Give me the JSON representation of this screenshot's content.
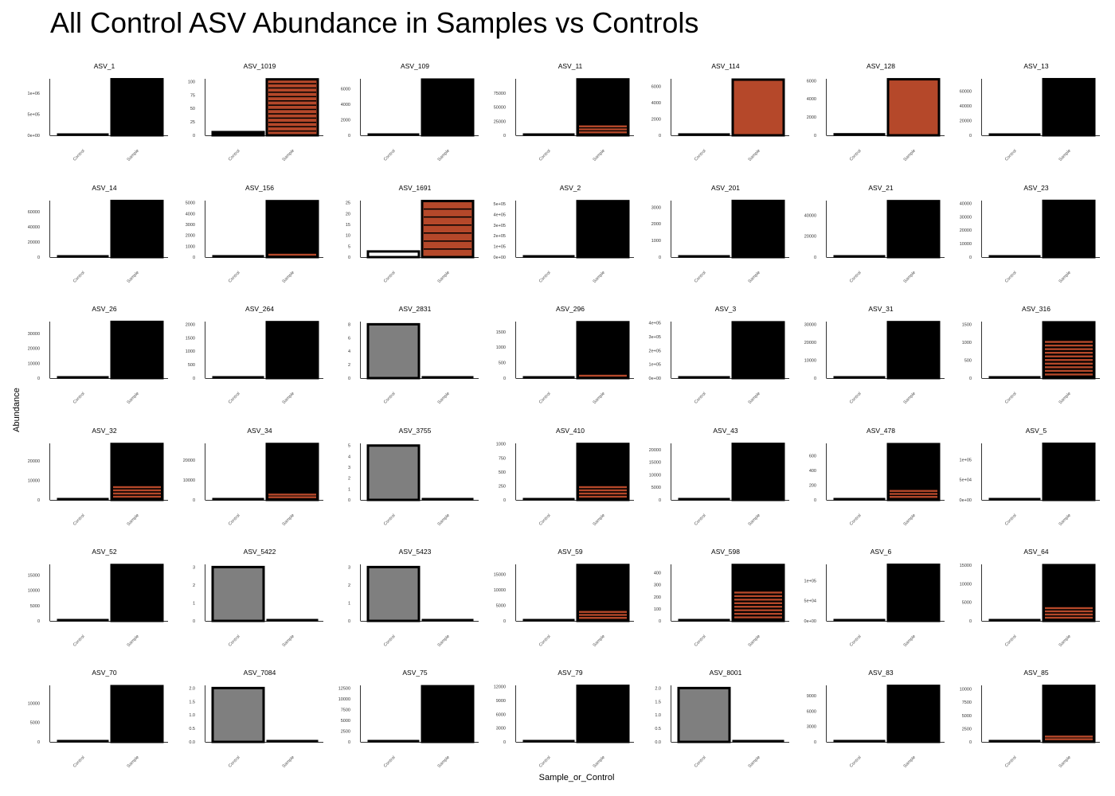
{
  "chart_data": {
    "type": "bar",
    "title": "All Control ASV Abundance in Samples vs Controls",
    "xlabel": "Sample_or_Control",
    "ylabel": "Abundance",
    "categories": [
      "Control",
      "Sample"
    ],
    "colors": {
      "black": "#000000",
      "rust": "#b5482a",
      "grey": "#7f7f7f"
    },
    "panels": [
      {
        "name": "ASV_1",
        "ymax": 1340000,
        "ticks": [
          [
            0,
            "0e+00"
          ],
          [
            500000,
            "5e+05"
          ],
          [
            1000000,
            "1e+06"
          ]
        ],
        "control": 30000,
        "sample": 1330000,
        "fill": "black"
      },
      {
        "name": "ASV_1019",
        "ymax": 105,
        "ticks": [
          [
            0,
            "0"
          ],
          [
            25,
            "25"
          ],
          [
            50,
            "50"
          ],
          [
            75,
            "75"
          ],
          [
            100,
            "100"
          ]
        ],
        "control": 6,
        "sample": 104,
        "fill": "rust",
        "stripes": 12
      },
      {
        "name": "ASV_109",
        "ymax": 7300,
        "ticks": [
          [
            0,
            "0"
          ],
          [
            2000,
            "2000"
          ],
          [
            4000,
            "4000"
          ],
          [
            6000,
            "6000"
          ]
        ],
        "control": 200,
        "sample": 7200,
        "fill": "black"
      },
      {
        "name": "ASV_11",
        "ymax": 100500,
        "ticks": [
          [
            0,
            "0"
          ],
          [
            25000,
            "25000"
          ],
          [
            50000,
            "50000"
          ],
          [
            75000,
            "75000"
          ]
        ],
        "control": 1500,
        "sample": 99500,
        "fill": "black",
        "stripes": 3
      },
      {
        "name": "ASV_114",
        "ymax": 6900,
        "ticks": [
          [
            0,
            "0"
          ],
          [
            2000,
            "2000"
          ],
          [
            4000,
            "4000"
          ],
          [
            6000,
            "6000"
          ]
        ],
        "control": 200,
        "sample": 6800,
        "fill": "rust"
      },
      {
        "name": "ASV_128",
        "ymax": 6200,
        "ticks": [
          [
            0,
            "0"
          ],
          [
            2000,
            "2000"
          ],
          [
            4000,
            "4000"
          ],
          [
            6000,
            "6000"
          ]
        ],
        "control": 200,
        "sample": 6150,
        "fill": "rust"
      },
      {
        "name": "ASV_13",
        "ymax": 77000,
        "ticks": [
          [
            0,
            "0"
          ],
          [
            20000,
            "20000"
          ],
          [
            40000,
            "40000"
          ],
          [
            60000,
            "60000"
          ]
        ],
        "control": 1500,
        "sample": 76500,
        "fill": "black"
      },
      {
        "name": "ASV_14",
        "ymax": 75000,
        "ticks": [
          [
            0,
            "0"
          ],
          [
            20000,
            "20000"
          ],
          [
            40000,
            "40000"
          ],
          [
            60000,
            "60000"
          ]
        ],
        "control": 1500,
        "sample": 74500,
        "fill": "black"
      },
      {
        "name": "ASV_156",
        "ymax": 5200,
        "ticks": [
          [
            0,
            "0"
          ],
          [
            1000,
            "1000"
          ],
          [
            2000,
            "2000"
          ],
          [
            3000,
            "3000"
          ],
          [
            4000,
            "4000"
          ],
          [
            5000,
            "5000"
          ]
        ],
        "control": 150,
        "sample": 5150,
        "fill": "black",
        "stripes": 1
      },
      {
        "name": "ASV_1691",
        "ymax": 26,
        "ticks": [
          [
            0,
            "0"
          ],
          [
            5,
            "5"
          ],
          [
            10,
            "10"
          ],
          [
            15,
            "15"
          ],
          [
            20,
            "20"
          ],
          [
            25,
            "25"
          ]
        ],
        "control": 2.6,
        "sample": 25.8,
        "fill": "rust",
        "stripes": 6,
        "controlFill": "white"
      },
      {
        "name": "ASV_2",
        "ymax": 530000,
        "ticks": [
          [
            0,
            "0e+00"
          ],
          [
            100000,
            "1e+05"
          ],
          [
            200000,
            "2e+05"
          ],
          [
            300000,
            "3e+05"
          ],
          [
            400000,
            "4e+05"
          ],
          [
            500000,
            "5e+05"
          ]
        ],
        "control": 10000,
        "sample": 525000,
        "fill": "black"
      },
      {
        "name": "ASV_201",
        "ymax": 3400,
        "ticks": [
          [
            0,
            "0"
          ],
          [
            1000,
            "1000"
          ],
          [
            2000,
            "2000"
          ],
          [
            3000,
            "3000"
          ]
        ],
        "control": 80,
        "sample": 3380,
        "fill": "black"
      },
      {
        "name": "ASV_21",
        "ymax": 54000,
        "ticks": [
          [
            0,
            "0"
          ],
          [
            20000,
            "20000"
          ],
          [
            40000,
            "40000"
          ]
        ],
        "control": 1000,
        "sample": 53500,
        "fill": "black"
      },
      {
        "name": "ASV_23",
        "ymax": 42000,
        "ticks": [
          [
            0,
            "0"
          ],
          [
            10000,
            "10000"
          ],
          [
            20000,
            "20000"
          ],
          [
            30000,
            "30000"
          ],
          [
            40000,
            "40000"
          ]
        ],
        "control": 800,
        "sample": 41800,
        "fill": "black"
      },
      {
        "name": "ASV_26",
        "ymax": 38000,
        "ticks": [
          [
            0,
            "0"
          ],
          [
            10000,
            "10000"
          ],
          [
            20000,
            "20000"
          ],
          [
            30000,
            "30000"
          ]
        ],
        "control": 800,
        "sample": 37800,
        "fill": "black"
      },
      {
        "name": "ASV_264",
        "ymax": 2100,
        "ticks": [
          [
            0,
            "0"
          ],
          [
            500,
            "500"
          ],
          [
            1000,
            "1000"
          ],
          [
            1500,
            "1500"
          ],
          [
            2000,
            "2000"
          ]
        ],
        "control": 50,
        "sample": 2080,
        "fill": "black"
      },
      {
        "name": "ASV_2831",
        "ymax": 8.4,
        "ticks": [
          [
            0,
            "0"
          ],
          [
            2,
            "2"
          ],
          [
            4,
            "4"
          ],
          [
            6,
            "6"
          ],
          [
            8,
            "8"
          ]
        ],
        "control": 8,
        "sample": 0.15,
        "fill": "black",
        "controlFill": "grey"
      },
      {
        "name": "ASV_296",
        "ymax": 1830,
        "ticks": [
          [
            0,
            "0"
          ],
          [
            500,
            "500"
          ],
          [
            1000,
            "1000"
          ],
          [
            1500,
            "1500"
          ]
        ],
        "control": 40,
        "sample": 1810,
        "fill": "black",
        "stripes": 1
      },
      {
        "name": "ASV_3",
        "ymax": 410000,
        "ticks": [
          [
            0,
            "0e+00"
          ],
          [
            100000,
            "1e+05"
          ],
          [
            200000,
            "2e+05"
          ],
          [
            300000,
            "3e+05"
          ],
          [
            400000,
            "4e+05"
          ]
        ],
        "control": 8000,
        "sample": 405000,
        "fill": "black"
      },
      {
        "name": "ASV_31",
        "ymax": 31500,
        "ticks": [
          [
            0,
            "0"
          ],
          [
            10000,
            "10000"
          ],
          [
            20000,
            "20000"
          ],
          [
            30000,
            "30000"
          ]
        ],
        "control": 700,
        "sample": 31200,
        "fill": "black"
      },
      {
        "name": "ASV_316",
        "ymax": 1580,
        "ticks": [
          [
            0,
            "0"
          ],
          [
            500,
            "500"
          ],
          [
            1000,
            "1000"
          ],
          [
            1500,
            "1500"
          ]
        ],
        "control": 30,
        "sample": 1560,
        "fill": "black",
        "stripes": 10
      },
      {
        "name": "ASV_32",
        "ymax": 29000,
        "ticks": [
          [
            0,
            "0"
          ],
          [
            10000,
            "10000"
          ],
          [
            20000,
            "20000"
          ]
        ],
        "control": 600,
        "sample": 28700,
        "fill": "black",
        "stripes": 4
      },
      {
        "name": "ASV_34",
        "ymax": 28500,
        "ticks": [
          [
            0,
            "0"
          ],
          [
            10000,
            "10000"
          ],
          [
            20000,
            "20000"
          ]
        ],
        "control": 600,
        "sample": 28200,
        "fill": "black",
        "stripes": 2
      },
      {
        "name": "ASV_3755",
        "ymax": 5.2,
        "ticks": [
          [
            0,
            "0"
          ],
          [
            1,
            "1"
          ],
          [
            2,
            "2"
          ],
          [
            3,
            "3"
          ],
          [
            4,
            "4"
          ],
          [
            5,
            "5"
          ]
        ],
        "control": 5,
        "sample": 0.1,
        "fill": "black",
        "controlFill": "grey"
      },
      {
        "name": "ASV_410",
        "ymax": 1010,
        "ticks": [
          [
            0,
            "0"
          ],
          [
            250,
            "250"
          ],
          [
            500,
            "500"
          ],
          [
            750,
            "750"
          ],
          [
            1000,
            "1000"
          ]
        ],
        "control": 25,
        "sample": 1000,
        "fill": "black",
        "stripes": 4
      },
      {
        "name": "ASV_43",
        "ymax": 22500,
        "ticks": [
          [
            0,
            "0"
          ],
          [
            5000,
            "5000"
          ],
          [
            10000,
            "10000"
          ],
          [
            15000,
            "15000"
          ],
          [
            20000,
            "20000"
          ]
        ],
        "control": 500,
        "sample": 22300,
        "fill": "black"
      },
      {
        "name": "ASV_478",
        "ymax": 770,
        "ticks": [
          [
            0,
            "0"
          ],
          [
            200,
            "200"
          ],
          [
            400,
            "400"
          ],
          [
            600,
            "600"
          ]
        ],
        "control": 20,
        "sample": 760,
        "fill": "black",
        "stripes": 3
      },
      {
        "name": "ASV_5",
        "ymax": 140000,
        "ticks": [
          [
            0,
            "0e+00"
          ],
          [
            50000,
            "5e+04"
          ],
          [
            100000,
            "1e+05"
          ]
        ],
        "control": 3000,
        "sample": 139000,
        "fill": "black"
      },
      {
        "name": "ASV_52",
        "ymax": 18500,
        "ticks": [
          [
            0,
            "0"
          ],
          [
            5000,
            "5000"
          ],
          [
            10000,
            "10000"
          ],
          [
            15000,
            "15000"
          ]
        ],
        "control": 400,
        "sample": 18300,
        "fill": "black"
      },
      {
        "name": "ASV_5422",
        "ymax": 3.15,
        "ticks": [
          [
            0,
            "0"
          ],
          [
            1,
            "1"
          ],
          [
            2,
            "2"
          ],
          [
            3,
            "3"
          ]
        ],
        "control": 3,
        "sample": 0.06,
        "fill": "black",
        "controlFill": "grey"
      },
      {
        "name": "ASV_5423",
        "ymax": 3.15,
        "ticks": [
          [
            0,
            "0"
          ],
          [
            1,
            "1"
          ],
          [
            2,
            "2"
          ],
          [
            3,
            "3"
          ]
        ],
        "control": 3,
        "sample": 0.06,
        "fill": "black",
        "controlFill": "grey"
      },
      {
        "name": "ASV_59",
        "ymax": 18200,
        "ticks": [
          [
            0,
            "0"
          ],
          [
            5000,
            "5000"
          ],
          [
            10000,
            "10000"
          ],
          [
            15000,
            "15000"
          ]
        ],
        "control": 400,
        "sample": 18000,
        "fill": "black",
        "stripes": 3
      },
      {
        "name": "ASV_598",
        "ymax": 470,
        "ticks": [
          [
            0,
            "0"
          ],
          [
            100,
            "100"
          ],
          [
            200,
            "200"
          ],
          [
            300,
            "300"
          ],
          [
            400,
            "400"
          ]
        ],
        "control": 12,
        "sample": 465,
        "fill": "black",
        "stripes": 8
      },
      {
        "name": "ASV_6",
        "ymax": 140000,
        "ticks": [
          [
            0,
            "0e+00"
          ],
          [
            50000,
            "5e+04"
          ],
          [
            100000,
            "1e+05"
          ]
        ],
        "control": 3000,
        "sample": 139000,
        "fill": "black"
      },
      {
        "name": "ASV_64",
        "ymax": 15200,
        "ticks": [
          [
            0,
            "0"
          ],
          [
            5000,
            "5000"
          ],
          [
            10000,
            "10000"
          ],
          [
            15000,
            "15000"
          ]
        ],
        "control": 300,
        "sample": 15000,
        "fill": "black",
        "stripes": 4
      },
      {
        "name": "ASV_70",
        "ymax": 14600,
        "ticks": [
          [
            0,
            "0"
          ],
          [
            5000,
            "5000"
          ],
          [
            10000,
            "10000"
          ]
        ],
        "control": 300,
        "sample": 14400,
        "fill": "black"
      },
      {
        "name": "ASV_7084",
        "ymax": 2.1,
        "ticks": [
          [
            0,
            "0.0"
          ],
          [
            0.5,
            "0.5"
          ],
          [
            1,
            "1.0"
          ],
          [
            1.5,
            "1.5"
          ],
          [
            2,
            "2.0"
          ]
        ],
        "control": 2,
        "sample": 0.04,
        "fill": "black",
        "controlFill": "grey"
      },
      {
        "name": "ASV_75",
        "ymax": 13100,
        "ticks": [
          [
            0,
            "0"
          ],
          [
            2500,
            "2500"
          ],
          [
            5000,
            "5000"
          ],
          [
            7500,
            "7500"
          ],
          [
            10000,
            "10000"
          ],
          [
            12500,
            "12500"
          ]
        ],
        "control": 300,
        "sample": 12900,
        "fill": "black"
      },
      {
        "name": "ASV_79",
        "ymax": 12300,
        "ticks": [
          [
            0,
            "0"
          ],
          [
            3000,
            "3000"
          ],
          [
            6000,
            "6000"
          ],
          [
            9000,
            "9000"
          ],
          [
            12000,
            "12000"
          ]
        ],
        "control": 300,
        "sample": 12200,
        "fill": "black"
      },
      {
        "name": "ASV_8001",
        "ymax": 2.1,
        "ticks": [
          [
            0,
            "0.0"
          ],
          [
            0.5,
            "0.5"
          ],
          [
            1,
            "1.0"
          ],
          [
            1.5,
            "1.5"
          ],
          [
            2,
            "2.0"
          ]
        ],
        "control": 2,
        "sample": 0.04,
        "fill": "black",
        "controlFill": "grey"
      },
      {
        "name": "ASV_83",
        "ymax": 11000,
        "ticks": [
          [
            0,
            "0"
          ],
          [
            3000,
            "3000"
          ],
          [
            6000,
            "6000"
          ],
          [
            9000,
            "9000"
          ]
        ],
        "control": 250,
        "sample": 10900,
        "fill": "black"
      },
      {
        "name": "ASV_85",
        "ymax": 10700,
        "ticks": [
          [
            0,
            "0"
          ],
          [
            2500,
            "2500"
          ],
          [
            5000,
            "5000"
          ],
          [
            7500,
            "7500"
          ],
          [
            10000,
            "10000"
          ]
        ],
        "control": 250,
        "sample": 10600,
        "fill": "black",
        "stripes": 2
      }
    ]
  }
}
